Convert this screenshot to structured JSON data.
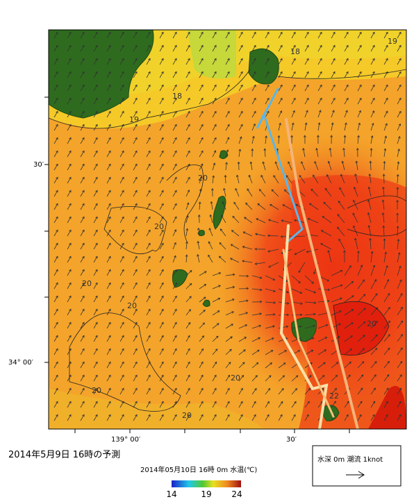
{
  "map": {
    "lat_labels": [
      "30′",
      "34° 00′"
    ],
    "lon_labels": [
      "139° 00′",
      "30′"
    ],
    "contour_labels": [
      "19",
      "18",
      "18",
      "19",
      "20",
      "20",
      "20",
      "20",
      "20",
      "20",
      "20",
      "22",
      "20"
    ]
  },
  "caption": "2014年5月9日 16時の予測",
  "colorbar": {
    "title": "2014年05月10日 16時 0m 水温(℃)",
    "ticks": [
      "14",
      "19",
      "24"
    ]
  },
  "legend": {
    "label": "水深 0m 潮流 1knot"
  }
}
